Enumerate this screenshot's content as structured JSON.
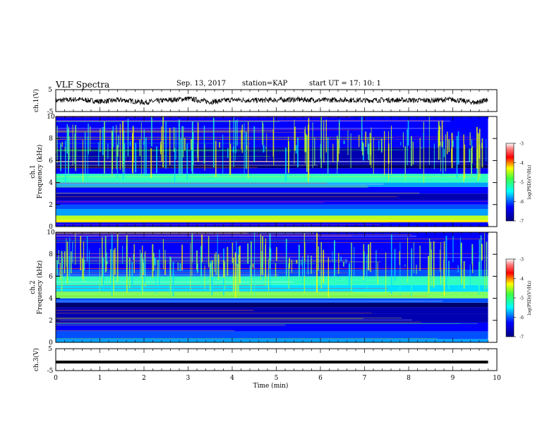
{
  "header": {
    "title": "VLF Spectra",
    "date": "Sep. 13, 2017",
    "station": "station=KAP",
    "start": "start UT =  17: 10: 1"
  },
  "colors": {
    "spectral_scale": [
      "#00008f",
      "#0000ff",
      "#0080ff",
      "#00ffff",
      "#80ff80",
      "#ffff00",
      "#ff8000",
      "#ff0000",
      "#800000",
      "#ffffff"
    ],
    "trace": "#000000",
    "axes": "#000000"
  },
  "chart_data": [
    {
      "type": "line",
      "ylabel": "ch.1(V)",
      "ylim": [
        -5,
        5
      ],
      "ytick_labels": [
        "5",
        "-5"
      ],
      "x": [
        0,
        0.5,
        1,
        1.5,
        2,
        2.5,
        3,
        3.5,
        4,
        4.5,
        5,
        5.5,
        6,
        6.5,
        7,
        7.5,
        8,
        8.5,
        9,
        9.5,
        9.8
      ],
      "values": [
        0,
        0.6,
        -0.4,
        0.3,
        -0.8,
        0.2,
        0.9,
        -0.6,
        0.4,
        0.1,
        0.3,
        0.5,
        0.2,
        0.4,
        0.1,
        0.3,
        0.2,
        0.1,
        0.5,
        -0.9,
        0.2
      ],
      "grid": false
    },
    {
      "type": "heatmap",
      "ylabel": "ch.1\nFrequency (kHz)",
      "ylim": [
        0,
        10
      ],
      "ytick_labels": [
        "0",
        "2",
        "4",
        "6",
        "8",
        "10"
      ],
      "xlim": [
        0,
        10
      ],
      "colorbar": {
        "label": "log(PSD)(V²/Hz)",
        "range": [
          -7,
          -3
        ],
        "tick_labels": [
          "-3",
          "-4",
          "-5",
          "-6",
          "-7"
        ]
      }
    },
    {
      "type": "heatmap",
      "ylabel": "ch.2\nFrequency (kHz)",
      "ylim": [
        0,
        10
      ],
      "ytick_labels": [
        "0",
        "2",
        "4",
        "6",
        "8",
        "10"
      ],
      "xlim": [
        0,
        10
      ],
      "colorbar": {
        "label": "log(PSD)(V²/Hz)",
        "range": [
          -7,
          -3
        ],
        "tick_labels": [
          "-3",
          "-4",
          "-5",
          "-6",
          "-7"
        ]
      }
    },
    {
      "type": "line",
      "ylabel": "ch.3(V)",
      "ylim": [
        -5,
        5
      ],
      "ytick_labels": [
        "5",
        "-5"
      ],
      "x": [
        0,
        9.8
      ],
      "values": [
        -1.1,
        -1.1
      ],
      "xlabel": "Time (min)",
      "xlim": [
        0,
        10
      ],
      "xtick_labels": [
        "0",
        "1",
        "2",
        "3",
        "4",
        "5",
        "6",
        "7",
        "8",
        "9",
        "10"
      ]
    }
  ]
}
